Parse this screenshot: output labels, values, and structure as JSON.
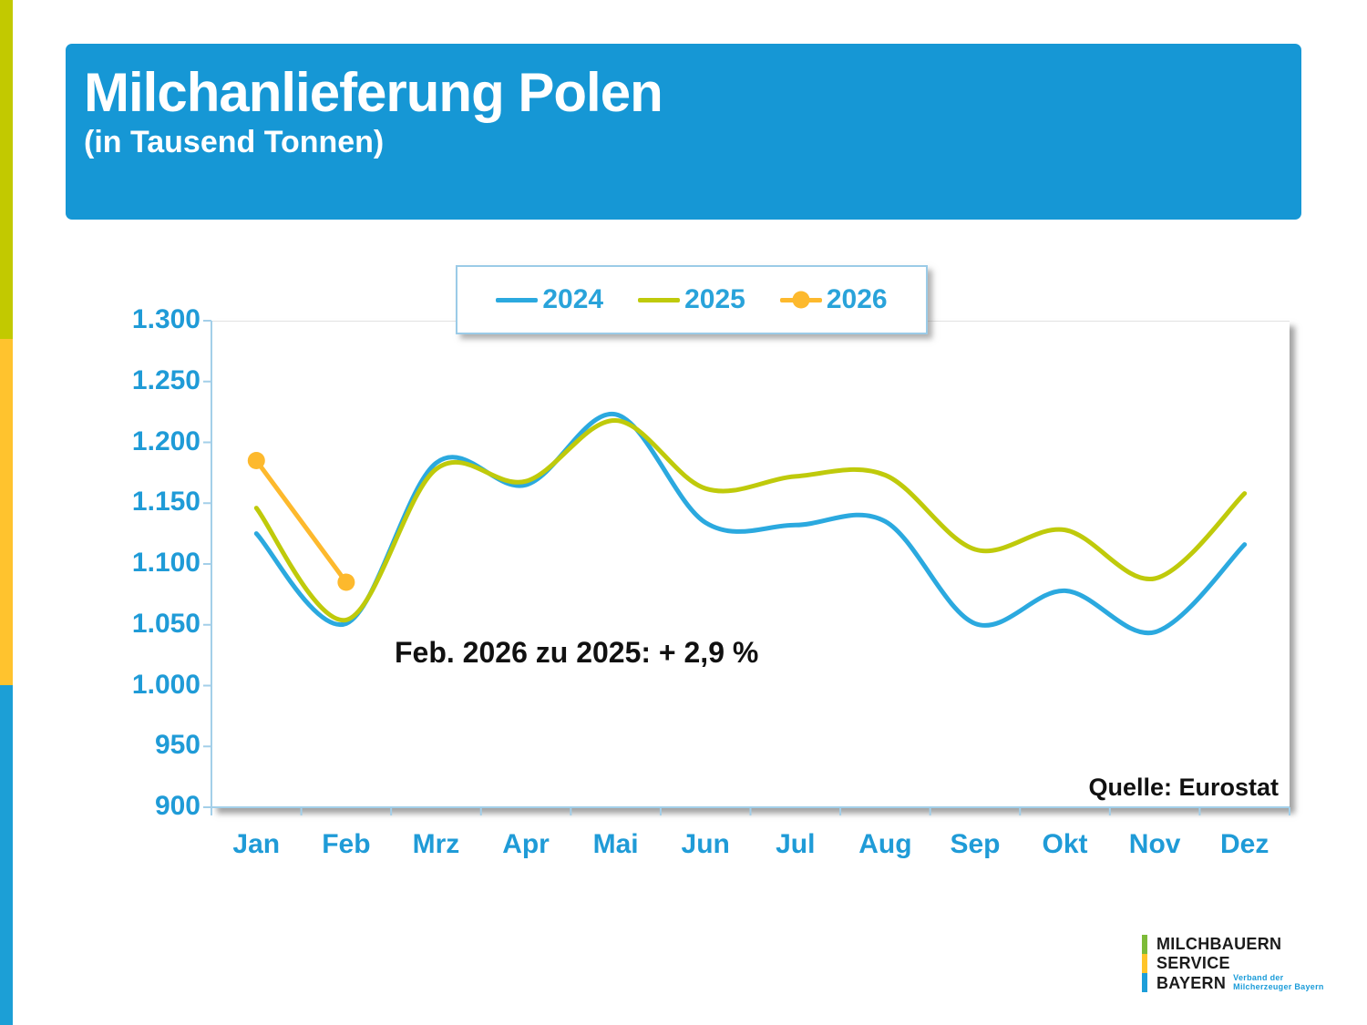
{
  "header": {
    "title": "Milchanlieferung Polen",
    "subtitle": "(in Tausend Tonnen)"
  },
  "chart_data": {
    "type": "line",
    "title": "Milchanlieferung Polen (in Tausend Tonnen)",
    "categories": [
      "Jan",
      "Feb",
      "Mrz",
      "Apr",
      "Mai",
      "Jun",
      "Jul",
      "Aug",
      "Sep",
      "Okt",
      "Nov",
      "Dez"
    ],
    "series": [
      {
        "name": "2024",
        "color": "#2BA9DF",
        "marker": false,
        "values": [
          1125,
          1051,
          1183,
          1165,
          1223,
          1134,
          1132,
          1135,
          1051,
          1078,
          1044,
          1116
        ]
      },
      {
        "name": "2025",
        "color": "#BFCA0B",
        "marker": false,
        "values": [
          1146,
          1054,
          1178,
          1168,
          1218,
          1162,
          1172,
          1173,
          1112,
          1128,
          1088,
          1158
        ]
      },
      {
        "name": "2026",
        "color": "#FDB92D",
        "marker": true,
        "values": [
          1185,
          1085
        ]
      }
    ],
    "ylim": [
      900,
      1300
    ],
    "ytick_step": 50,
    "y_tick_labels": [
      "1.300",
      "1.250",
      "1.200",
      "1.150",
      "1.100",
      "1.050",
      "1.000",
      "950",
      "900"
    ],
    "legend_position": "top",
    "grid": false
  },
  "annotation": {
    "text": "Feb. 2026 zu 2025: + 2,9 %"
  },
  "source": {
    "text": "Quelle: Eurostat"
  },
  "logo": {
    "line1": "MILCHBAUERN",
    "line2": "SERVICE",
    "line3": "BAYERN",
    "sub1": "Verband der",
    "sub2": "Milcherzeuger Bayern"
  },
  "colors": {
    "header_bg": "#1697D5",
    "axis_label": "#1F9BD7",
    "axis_line": "#A3CFE9",
    "legend_text": "#29A3DA",
    "annotation_text": "#111111",
    "sidebar": [
      "#C2C900",
      "#FFC32E",
      "#1C9FD6"
    ],
    "sidebar_heights": [
      372,
      380,
      373
    ],
    "logo_bar": [
      "#7DBB38",
      "#FFC428",
      "#1D9ED9"
    ]
  }
}
